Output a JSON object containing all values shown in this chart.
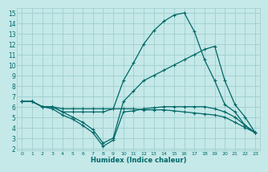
{
  "xlabel": "Humidex (Indice chaleur)",
  "bg_color": "#c5e8e8",
  "grid_color": "#9ecece",
  "line_color": "#006868",
  "xlim": [
    -0.5,
    23.5
  ],
  "ylim": [
    1.8,
    15.5
  ],
  "yticks": [
    2,
    3,
    4,
    5,
    6,
    7,
    8,
    9,
    10,
    11,
    12,
    13,
    14,
    15
  ],
  "xticks": [
    0,
    1,
    2,
    3,
    4,
    5,
    6,
    7,
    8,
    9,
    10,
    11,
    12,
    13,
    14,
    15,
    16,
    17,
    18,
    19,
    20,
    21,
    22,
    23
  ],
  "lines": [
    {
      "comment": "nearly flat line ~6.5 declining to ~3.5 at end",
      "x": [
        0,
        1,
        2,
        3,
        4,
        5,
        6,
        7,
        8,
        9,
        10,
        11,
        12,
        13,
        14,
        15,
        16,
        17,
        18,
        19,
        20,
        21,
        22,
        23
      ],
      "y": [
        6.5,
        6.5,
        6.0,
        6.0,
        5.8,
        5.8,
        5.8,
        5.8,
        5.8,
        5.8,
        5.8,
        5.8,
        5.7,
        5.7,
        5.7,
        5.6,
        5.5,
        5.4,
        5.3,
        5.2,
        5.0,
        4.5,
        4.0,
        3.5
      ]
    },
    {
      "comment": "line going down to ~2.2 at x=8 then back up to ~6 then decline to ~3.5",
      "x": [
        0,
        1,
        2,
        3,
        4,
        5,
        6,
        7,
        8,
        9,
        10,
        11,
        12,
        13,
        14,
        15,
        16,
        17,
        18,
        19,
        20,
        21,
        22,
        23
      ],
      "y": [
        6.5,
        6.5,
        6.0,
        5.8,
        5.2,
        4.8,
        4.2,
        3.5,
        2.2,
        2.8,
        5.5,
        5.6,
        5.8,
        5.9,
        6.0,
        6.0,
        6.0,
        6.0,
        6.0,
        5.8,
        5.5,
        5.0,
        4.2,
        3.5
      ]
    },
    {
      "comment": "second low curve going to ~2.5 at x=8 then flat ~6",
      "x": [
        0,
        1,
        2,
        3,
        4,
        5,
        6,
        7,
        8,
        9,
        10,
        11,
        12,
        13,
        14,
        15,
        16,
        17,
        18,
        19,
        20,
        21,
        22,
        23
      ],
      "y": [
        6.5,
        6.5,
        6.0,
        6.0,
        5.5,
        5.0,
        4.5,
        3.8,
        2.5,
        3.0,
        6.5,
        7.5,
        8.5,
        9.0,
        9.5,
        10.0,
        10.5,
        11.0,
        11.5,
        11.8,
        8.5,
        6.2,
        5.0,
        3.5
      ]
    },
    {
      "comment": "main peak curve peaking at x=15-16 y=15",
      "x": [
        0,
        1,
        2,
        3,
        4,
        5,
        6,
        7,
        8,
        9,
        10,
        11,
        12,
        13,
        14,
        15,
        16,
        17,
        18,
        19,
        20,
        21,
        22,
        23
      ],
      "y": [
        6.5,
        6.5,
        6.0,
        6.0,
        5.5,
        5.5,
        5.5,
        5.5,
        5.5,
        5.8,
        8.5,
        10.2,
        12.0,
        13.3,
        14.2,
        14.8,
        15.0,
        13.2,
        10.5,
        8.5,
        6.2,
        5.5,
        4.2,
        3.5
      ]
    }
  ]
}
